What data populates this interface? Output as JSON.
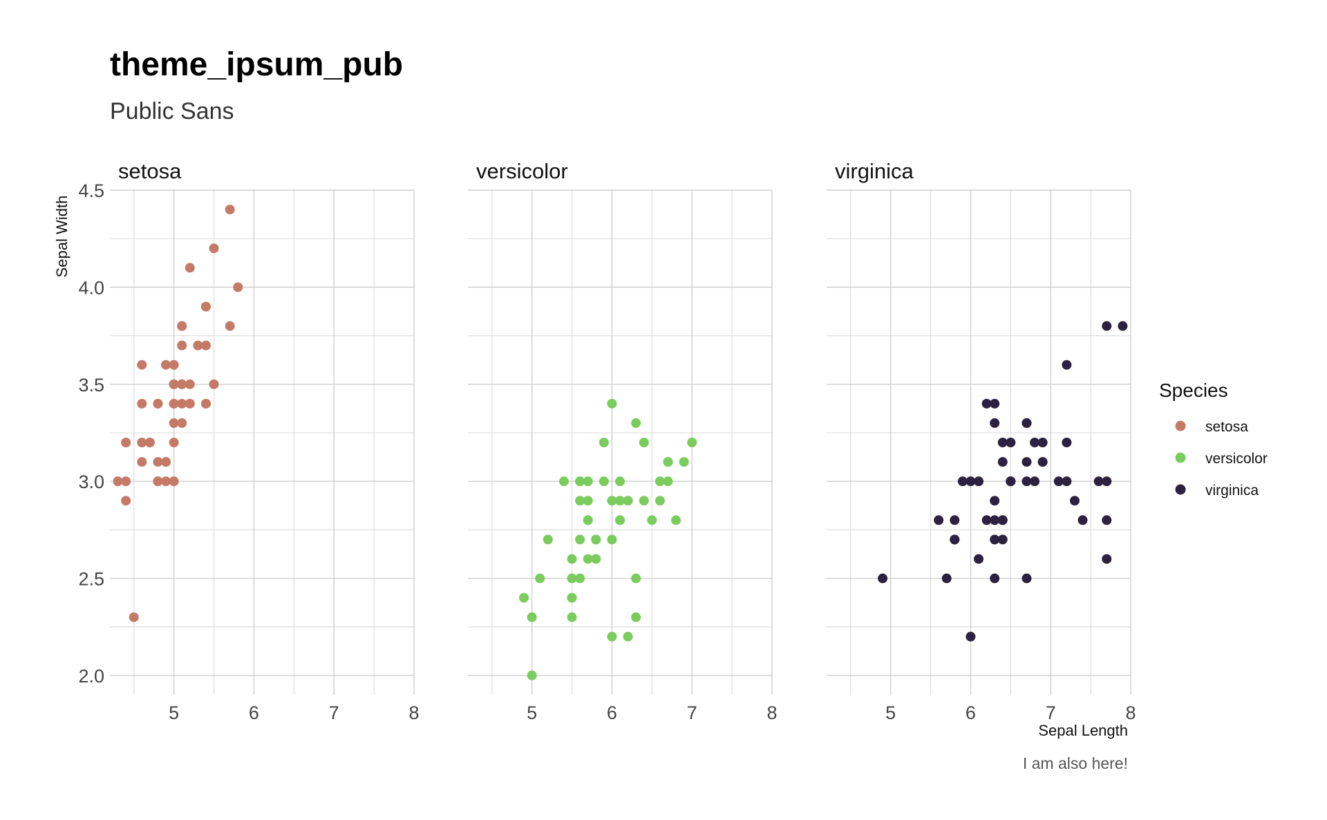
{
  "chart_data": {
    "type": "scatter",
    "title": "theme_ipsum_pub",
    "subtitle": "Public Sans",
    "xlabel": "Sepal Length",
    "ylabel": "Sepal Width",
    "caption": "I am also here!",
    "xlim": [
      4.2,
      8.0
    ],
    "ylim": [
      1.9,
      4.5
    ],
    "x_ticks": [
      5,
      6,
      7,
      8
    ],
    "y_ticks": [
      "2.0",
      "2.5",
      "3.0",
      "3.5",
      "4.0",
      "4.5"
    ],
    "grid": true,
    "legend": {
      "title": "Species",
      "placement": "right"
    },
    "facets": [
      {
        "name": "setosa",
        "color": "#c47a67",
        "points": [
          [
            5.1,
            3.5
          ],
          [
            4.9,
            3.0
          ],
          [
            4.7,
            3.2
          ],
          [
            4.6,
            3.1
          ],
          [
            5.0,
            3.6
          ],
          [
            5.4,
            3.9
          ],
          [
            4.6,
            3.4
          ],
          [
            5.0,
            3.4
          ],
          [
            4.4,
            2.9
          ],
          [
            4.9,
            3.1
          ],
          [
            5.4,
            3.7
          ],
          [
            4.8,
            3.4
          ],
          [
            4.8,
            3.0
          ],
          [
            4.3,
            3.0
          ],
          [
            5.8,
            4.0
          ],
          [
            5.7,
            4.4
          ],
          [
            5.4,
            3.9
          ],
          [
            5.1,
            3.5
          ],
          [
            5.7,
            3.8
          ],
          [
            5.1,
            3.8
          ],
          [
            5.4,
            3.4
          ],
          [
            5.1,
            3.7
          ],
          [
            4.6,
            3.6
          ],
          [
            5.1,
            3.3
          ],
          [
            4.8,
            3.4
          ],
          [
            5.0,
            3.0
          ],
          [
            5.0,
            3.4
          ],
          [
            5.2,
            3.5
          ],
          [
            5.2,
            3.4
          ],
          [
            4.7,
            3.2
          ],
          [
            4.8,
            3.1
          ],
          [
            5.4,
            3.4
          ],
          [
            5.2,
            4.1
          ],
          [
            5.5,
            4.2
          ],
          [
            4.9,
            3.1
          ],
          [
            5.0,
            3.2
          ],
          [
            5.5,
            3.5
          ],
          [
            4.9,
            3.6
          ],
          [
            4.4,
            3.0
          ],
          [
            5.1,
            3.4
          ],
          [
            5.0,
            3.5
          ],
          [
            4.5,
            2.3
          ],
          [
            4.4,
            3.2
          ],
          [
            5.0,
            3.5
          ],
          [
            5.1,
            3.8
          ],
          [
            4.8,
            3.0
          ],
          [
            5.1,
            3.8
          ],
          [
            4.6,
            3.2
          ],
          [
            5.3,
            3.7
          ],
          [
            5.0,
            3.3
          ]
        ]
      },
      {
        "name": "versicolor",
        "color": "#7acc5d",
        "points": [
          [
            7.0,
            3.2
          ],
          [
            6.4,
            3.2
          ],
          [
            6.9,
            3.1
          ],
          [
            5.5,
            2.3
          ],
          [
            6.5,
            2.8
          ],
          [
            5.7,
            2.8
          ],
          [
            6.3,
            3.3
          ],
          [
            4.9,
            2.4
          ],
          [
            6.6,
            2.9
          ],
          [
            5.2,
            2.7
          ],
          [
            5.0,
            2.0
          ],
          [
            5.9,
            3.0
          ],
          [
            6.0,
            2.2
          ],
          [
            6.1,
            2.9
          ],
          [
            5.6,
            2.9
          ],
          [
            6.7,
            3.1
          ],
          [
            5.6,
            3.0
          ],
          [
            5.8,
            2.7
          ],
          [
            6.2,
            2.2
          ],
          [
            5.6,
            2.5
          ],
          [
            5.9,
            3.2
          ],
          [
            6.1,
            2.8
          ],
          [
            6.3,
            2.5
          ],
          [
            6.1,
            2.8
          ],
          [
            6.4,
            2.9
          ],
          [
            6.6,
            3.0
          ],
          [
            6.8,
            2.8
          ],
          [
            6.7,
            3.0
          ],
          [
            6.0,
            2.9
          ],
          [
            5.7,
            2.6
          ],
          [
            5.5,
            2.4
          ],
          [
            5.5,
            2.4
          ],
          [
            5.8,
            2.7
          ],
          [
            6.0,
            2.7
          ],
          [
            5.4,
            3.0
          ],
          [
            6.0,
            3.4
          ],
          [
            6.7,
            3.1
          ],
          [
            6.3,
            2.3
          ],
          [
            5.6,
            3.0
          ],
          [
            5.5,
            2.5
          ],
          [
            5.5,
            2.6
          ],
          [
            6.1,
            3.0
          ],
          [
            5.8,
            2.6
          ],
          [
            5.0,
            2.3
          ],
          [
            5.6,
            2.7
          ],
          [
            5.7,
            3.0
          ],
          [
            5.7,
            2.9
          ],
          [
            6.2,
            2.9
          ],
          [
            5.1,
            2.5
          ],
          [
            5.7,
            2.8
          ]
        ]
      },
      {
        "name": "virginica",
        "color": "#2b2140",
        "points": [
          [
            6.3,
            3.3
          ],
          [
            5.8,
            2.7
          ],
          [
            7.1,
            3.0
          ],
          [
            6.3,
            2.9
          ],
          [
            6.5,
            3.0
          ],
          [
            7.6,
            3.0
          ],
          [
            4.9,
            2.5
          ],
          [
            7.3,
            2.9
          ],
          [
            6.7,
            2.5
          ],
          [
            7.2,
            3.6
          ],
          [
            6.5,
            3.2
          ],
          [
            6.4,
            2.7
          ],
          [
            6.8,
            3.0
          ],
          [
            5.7,
            2.5
          ],
          [
            5.8,
            2.8
          ],
          [
            6.4,
            3.2
          ],
          [
            6.5,
            3.0
          ],
          [
            7.7,
            3.8
          ],
          [
            7.7,
            2.6
          ],
          [
            6.0,
            2.2
          ],
          [
            6.9,
            3.2
          ],
          [
            5.6,
            2.8
          ],
          [
            7.7,
            2.8
          ],
          [
            6.3,
            2.7
          ],
          [
            6.7,
            3.3
          ],
          [
            7.2,
            3.2
          ],
          [
            6.2,
            2.8
          ],
          [
            6.1,
            3.0
          ],
          [
            6.4,
            2.8
          ],
          [
            7.2,
            3.0
          ],
          [
            7.4,
            2.8
          ],
          [
            7.9,
            3.8
          ],
          [
            6.4,
            2.8
          ],
          [
            6.3,
            2.8
          ],
          [
            6.1,
            2.6
          ],
          [
            7.7,
            3.0
          ],
          [
            6.3,
            3.4
          ],
          [
            6.4,
            3.1
          ],
          [
            6.0,
            3.0
          ],
          [
            6.9,
            3.1
          ],
          [
            6.7,
            3.1
          ],
          [
            6.9,
            3.1
          ],
          [
            5.8,
            2.7
          ],
          [
            6.8,
            3.2
          ],
          [
            6.7,
            3.3
          ],
          [
            6.7,
            3.0
          ],
          [
            6.3,
            2.5
          ],
          [
            6.5,
            3.0
          ],
          [
            6.2,
            3.4
          ],
          [
            5.9,
            3.0
          ]
        ]
      }
    ]
  }
}
